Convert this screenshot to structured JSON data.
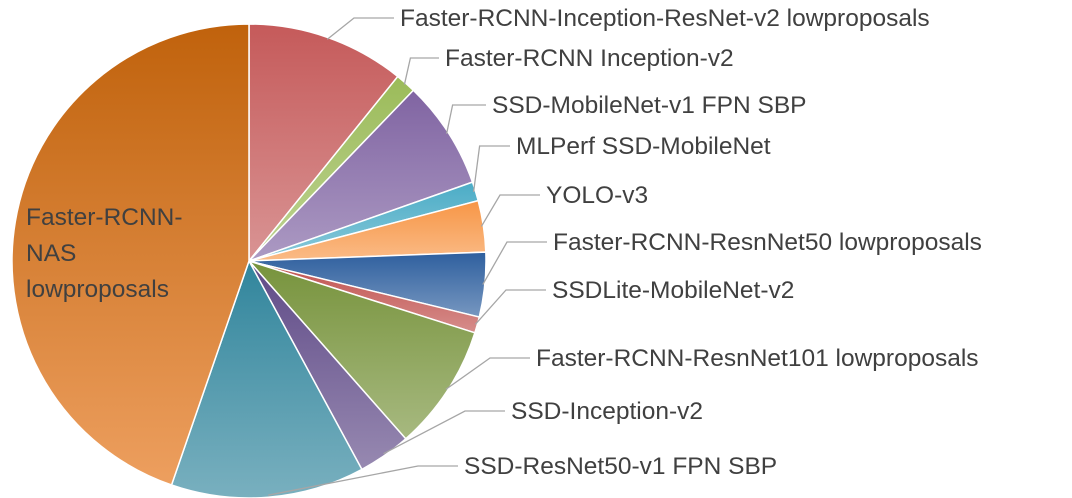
{
  "chart_data": {
    "type": "pie",
    "title": "",
    "start_angle_deg": 0,
    "direction": "clockwise",
    "slices": [
      {
        "label": "Faster-RCNN-Inception-ResNet-v2 lowproposals",
        "value": 10.8,
        "color": "#c55a5a",
        "label_anchor": "start"
      },
      {
        "label": "Faster-RCNN Inception-v2",
        "value": 1.4,
        "color": "#9bbb59",
        "label_anchor": "start"
      },
      {
        "label": "SSD-MobileNet-v1 FPN SBP",
        "value": 7.4,
        "color": "#8064a2",
        "label_anchor": "start"
      },
      {
        "label": "MLPerf SSD-MobileNet",
        "value": 1.3,
        "color": "#4bacc6",
        "label_anchor": "start"
      },
      {
        "label": "YOLO-v3",
        "value": 3.5,
        "color": "#f79646",
        "label_anchor": "start"
      },
      {
        "label": "Faster-RCNN-ResnNet50 lowproposals",
        "value": 4.4,
        "color": "#2e5f9e",
        "label_anchor": "start"
      },
      {
        "label": "SSDLite-MobileNet-v2",
        "value": 1.1,
        "color": "#c0504d",
        "label_anchor": "start"
      },
      {
        "label": "Faster-RCNN-ResnNet101 lowproposals",
        "value": 8.6,
        "color": "#77933c",
        "label_anchor": "start"
      },
      {
        "label": "SSD-Inception-v2",
        "value": 3.6,
        "color": "#5f4a87",
        "label_anchor": "start"
      },
      {
        "label": "SSD-ResNet50-v1 FPN SBP",
        "value": 13.2,
        "color": "#31859c",
        "label_anchor": "start"
      },
      {
        "label": "Faster-RCNN-NAS lowproposals",
        "value": 44.7,
        "color": "#e36c09",
        "label_lines": [
          "Faster-RCNN-",
          "NAS",
          "lowproposals"
        ],
        "label_anchor": "inside"
      }
    ]
  }
}
